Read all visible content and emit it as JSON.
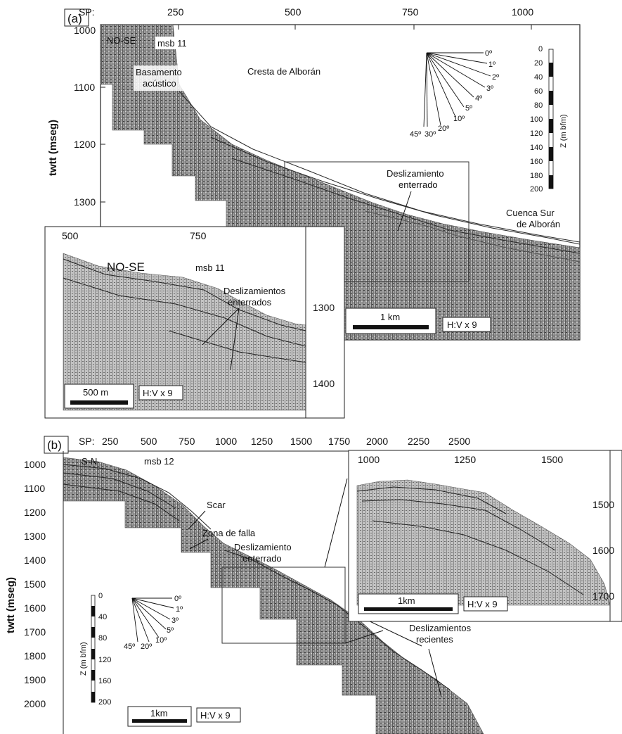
{
  "panel_a": {
    "letter": "(a)",
    "sp_label": "SP:",
    "sp_ticks": [
      "250",
      "500",
      "750",
      "1000"
    ],
    "y_axis_title": "twtt (mseg)",
    "y_ticks": [
      "1000",
      "1100",
      "1200",
      "1300"
    ],
    "labels": {
      "direction": "NO-SE",
      "line": "msb 11",
      "basement_1": "Basamento",
      "basement_2": "acústico",
      "ridge": "Cresta de Alborán",
      "slide_1": "Deslizamiento",
      "slide_2": "enterrado",
      "basin_1": "Cuenca Sur",
      "basin_2": "de Alborán"
    },
    "slope_angles": [
      "0º",
      "1º",
      "2º",
      "3º",
      "4º",
      "5º",
      "10º",
      "20º",
      "30º",
      "45º"
    ],
    "depth_scale": {
      "title": "Z (m bfm)",
      "ticks": [
        "0",
        "20",
        "40",
        "60",
        "80",
        "100",
        "120",
        "140",
        "160",
        "180",
        "200"
      ]
    },
    "scale_bar": "1 km",
    "exaggeration": "H:V x 9",
    "inset": {
      "sp_ticks": [
        "500",
        "750"
      ],
      "y_ticks": [
        "1300",
        "1400"
      ],
      "direction": "NO-SE",
      "line": "msb 11",
      "slide_1": "Deslizamientos",
      "slide_2": "enterrados",
      "scale_bar": "500 m",
      "exaggeration": "H:V x 9"
    }
  },
  "panel_b": {
    "letter": "(b)",
    "sp_label": "SP:",
    "sp_ticks": [
      "250",
      "500",
      "750",
      "1000",
      "1250",
      "1500",
      "1750",
      "2000",
      "2250",
      "2500"
    ],
    "y_axis_title": "twtt (mseg)",
    "y_ticks": [
      "1000",
      "1100",
      "1200",
      "1300",
      "1400",
      "1500",
      "1600",
      "1700",
      "1800",
      "1900",
      "2000"
    ],
    "labels": {
      "direction": "S-N",
      "line": "msb 12",
      "scar": "Scar",
      "fault": "Zona de falla",
      "slide_1": "Deslizamiento",
      "slide_2": "enterrado",
      "recent_1": "Deslizamientos",
      "recent_2": "recientes"
    },
    "slope_angles": [
      "0º",
      "1º",
      "3º",
      "5º",
      "10º",
      "20º",
      "45º"
    ],
    "depth_scale": {
      "title": "Z (m bfm)",
      "ticks": [
        "0",
        "40",
        "80",
        "120",
        "160",
        "200"
      ]
    },
    "scale_bar": "1km",
    "exaggeration": "H:V x 9",
    "inset": {
      "sp_ticks": [
        "1000",
        "1250",
        "1500"
      ],
      "y_ticks": [
        "1500",
        "1600",
        "1700"
      ],
      "scale_bar": "1km",
      "exaggeration": "H:V x 9"
    }
  }
}
